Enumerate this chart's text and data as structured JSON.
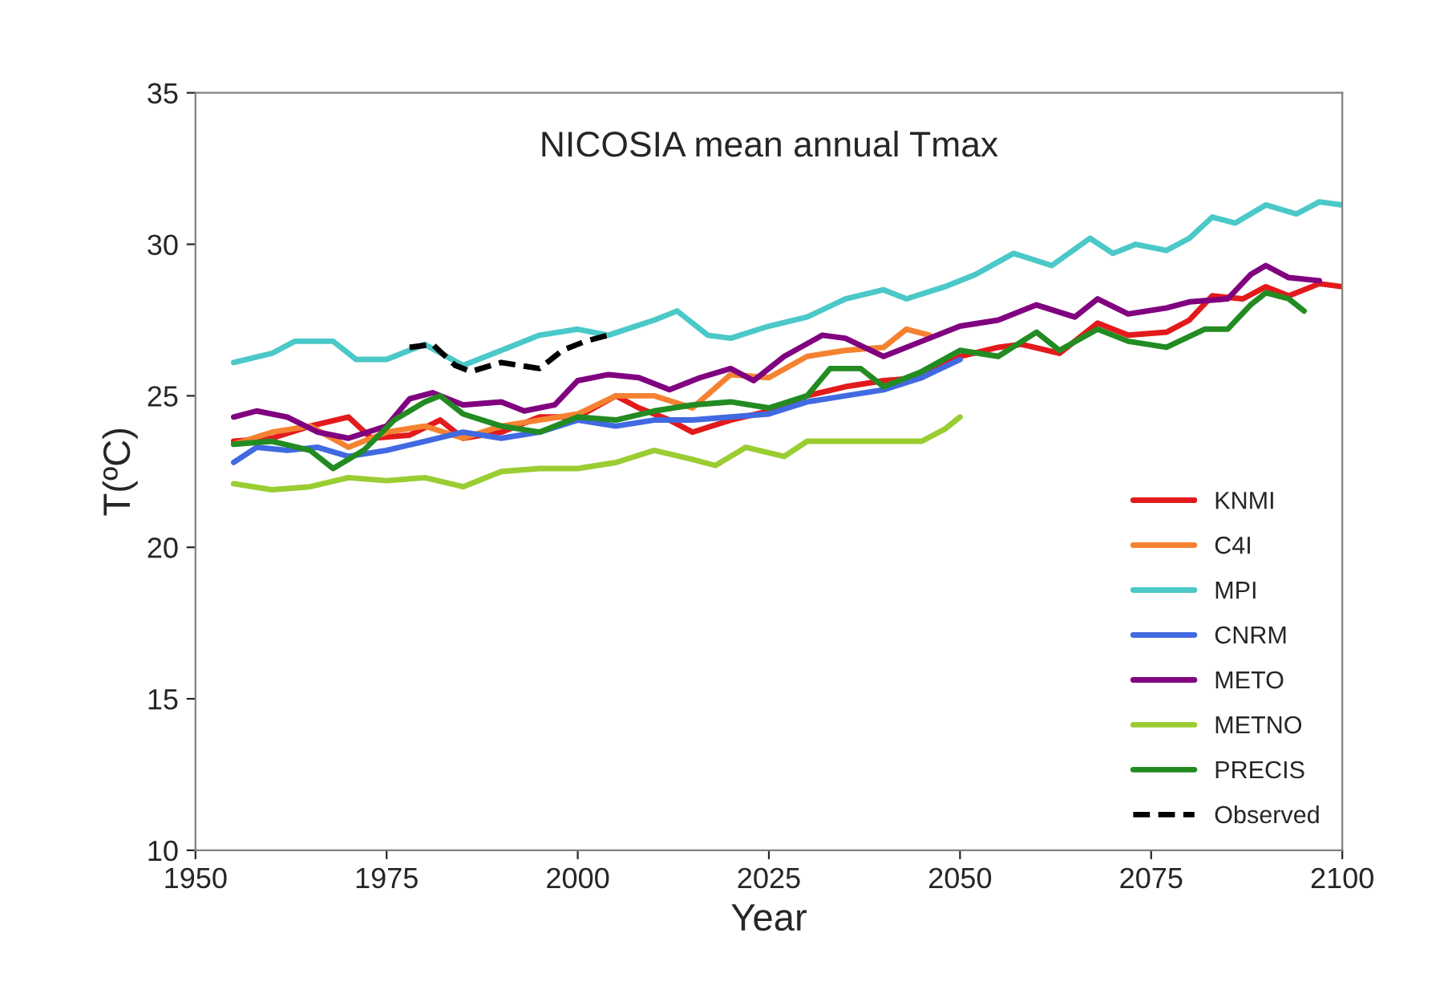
{
  "chart_data": {
    "type": "line",
    "title": "NICOSIA mean annual Tmax",
    "xlabel": "Year",
    "ylabel": "T(ºC)",
    "xlim": [
      1950,
      2100
    ],
    "xticks": [
      1950,
      1975,
      2000,
      2025,
      2050,
      2075,
      2100
    ],
    "ylim": [
      10,
      35
    ],
    "yticks": [
      10,
      15,
      20,
      25,
      30,
      35
    ],
    "grid": false,
    "legend": "bottom right",
    "marker": "none",
    "series": [
      {
        "name": "KNMI",
        "color": "#e31a1c",
        "line_style": "solid",
        "x": [
          1955,
          1960,
          1965,
          1970,
          1973,
          1978,
          1982,
          1985,
          1990,
          1995,
          2000,
          2005,
          2008,
          2012,
          2015,
          2020,
          2025,
          2030,
          2035,
          2040,
          2045,
          2050,
          2055,
          2058,
          2063,
          2068,
          2072,
          2077,
          2080,
          2083,
          2087,
          2090,
          2093,
          2097,
          2100
        ],
        "values": [
          23.5,
          23.6,
          24.0,
          24.3,
          23.6,
          23.7,
          24.2,
          23.6,
          23.8,
          24.3,
          24.3,
          25.0,
          24.6,
          24.2,
          23.8,
          24.2,
          24.5,
          25.0,
          25.3,
          25.5,
          25.6,
          26.3,
          26.6,
          26.7,
          26.4,
          27.4,
          27.0,
          27.1,
          27.5,
          28.3,
          28.2,
          28.6,
          28.3,
          28.7,
          28.6
        ]
      },
      {
        "name": "C4I",
        "color": "#f58231",
        "line_style": "solid",
        "x": [
          1955,
          1960,
          1965,
          1970,
          1975,
          1980,
          1985,
          1990,
          1995,
          2000,
          2005,
          2010,
          2015,
          2020,
          2025,
          2030,
          2035,
          2040,
          2043,
          2046
        ],
        "values": [
          23.4,
          23.8,
          24.0,
          23.3,
          23.8,
          24.0,
          23.6,
          24.0,
          24.2,
          24.4,
          25.0,
          25.0,
          24.6,
          25.7,
          25.6,
          26.3,
          26.5,
          26.6,
          27.2,
          27.0
        ]
      },
      {
        "name": "MPI",
        "color": "#4bc8c8",
        "line_style": "solid",
        "x": [
          1955,
          1960,
          1963,
          1968,
          1971,
          1975,
          1980,
          1985,
          1990,
          1995,
          2000,
          2004,
          2010,
          2013,
          2017,
          2020,
          2025,
          2030,
          2035,
          2040,
          2043,
          2048,
          2052,
          2057,
          2062,
          2067,
          2070,
          2073,
          2077,
          2080,
          2083,
          2086,
          2090,
          2094,
          2097,
          2100
        ],
        "values": [
          26.1,
          26.4,
          26.8,
          26.8,
          26.2,
          26.2,
          26.7,
          26.0,
          26.5,
          27.0,
          27.2,
          27.0,
          27.5,
          27.8,
          27.0,
          26.9,
          27.3,
          27.6,
          28.2,
          28.5,
          28.2,
          28.6,
          29.0,
          29.7,
          29.3,
          30.2,
          29.7,
          30.0,
          29.8,
          30.2,
          30.9,
          30.7,
          31.3,
          31.0,
          31.4,
          31.3
        ]
      },
      {
        "name": "CNRM",
        "color": "#4169e1",
        "line_style": "solid",
        "x": [
          1955,
          1958,
          1962,
          1966,
          1970,
          1975,
          1980,
          1985,
          1990,
          1995,
          2000,
          2005,
          2010,
          2015,
          2020,
          2025,
          2030,
          2035,
          2040,
          2045,
          2050
        ],
        "values": [
          22.8,
          23.3,
          23.2,
          23.3,
          23.0,
          23.2,
          23.5,
          23.8,
          23.6,
          23.8,
          24.2,
          24.0,
          24.2,
          24.2,
          24.3,
          24.4,
          24.8,
          25.0,
          25.2,
          25.6,
          26.2
        ]
      },
      {
        "name": "METO",
        "color": "#800080",
        "line_style": "solid",
        "x": [
          1955,
          1958,
          1962,
          1966,
          1970,
          1975,
          1978,
          1981,
          1985,
          1990,
          1993,
          1997,
          2000,
          2004,
          2008,
          2012,
          2016,
          2020,
          2023,
          2027,
          2032,
          2035,
          2040,
          2045,
          2050,
          2055,
          2060,
          2065,
          2068,
          2072,
          2077,
          2080,
          2085,
          2088,
          2090,
          2093,
          2097
        ],
        "values": [
          24.3,
          24.5,
          24.3,
          23.8,
          23.6,
          24.0,
          24.9,
          25.1,
          24.7,
          24.8,
          24.5,
          24.7,
          25.5,
          25.7,
          25.6,
          25.2,
          25.6,
          25.9,
          25.5,
          26.3,
          27.0,
          26.9,
          26.3,
          26.8,
          27.3,
          27.5,
          28.0,
          27.6,
          28.2,
          27.7,
          27.9,
          28.1,
          28.2,
          29.0,
          29.3,
          28.9,
          28.8
        ]
      },
      {
        "name": "METNO",
        "color": "#9acd32",
        "line_style": "solid",
        "x": [
          1955,
          1960,
          1965,
          1970,
          1975,
          1980,
          1985,
          1990,
          1995,
          2000,
          2005,
          2010,
          2015,
          2018,
          2022,
          2027,
          2030,
          2035,
          2040,
          2045,
          2048,
          2050
        ],
        "values": [
          22.1,
          21.9,
          22.0,
          22.3,
          22.2,
          22.3,
          22.0,
          22.5,
          22.6,
          22.6,
          22.8,
          23.2,
          22.9,
          22.7,
          23.3,
          23.0,
          23.5,
          23.5,
          23.5,
          23.5,
          23.9,
          24.3
        ]
      },
      {
        "name": "PRECIS",
        "color": "#228b22",
        "line_style": "solid",
        "x": [
          1955,
          1960,
          1965,
          1968,
          1972,
          1976,
          1980,
          1982,
          1985,
          1990,
          1995,
          2000,
          2005,
          2010,
          2015,
          2020,
          2025,
          2030,
          2033,
          2037,
          2040,
          2045,
          2050,
          2055,
          2060,
          2063,
          2068,
          2072,
          2077,
          2082,
          2085,
          2088,
          2090,
          2093,
          2095
        ],
        "values": [
          23.4,
          23.5,
          23.2,
          22.6,
          23.2,
          24.2,
          24.8,
          25.0,
          24.4,
          24.0,
          23.8,
          24.3,
          24.2,
          24.5,
          24.7,
          24.8,
          24.6,
          25.0,
          25.9,
          25.9,
          25.3,
          25.8,
          26.5,
          26.3,
          27.1,
          26.5,
          27.2,
          26.8,
          26.6,
          27.2,
          27.2,
          28.0,
          28.4,
          28.2,
          27.8
        ]
      },
      {
        "name": "Observed",
        "color": "#000000",
        "line_style": "dashed",
        "x": [
          1978,
          1981,
          1984,
          1986,
          1990,
          1995,
          1998,
          2001,
          2004
        ],
        "values": [
          26.6,
          26.7,
          26.0,
          25.8,
          26.1,
          25.9,
          26.5,
          26.8,
          27.0
        ]
      }
    ]
  }
}
